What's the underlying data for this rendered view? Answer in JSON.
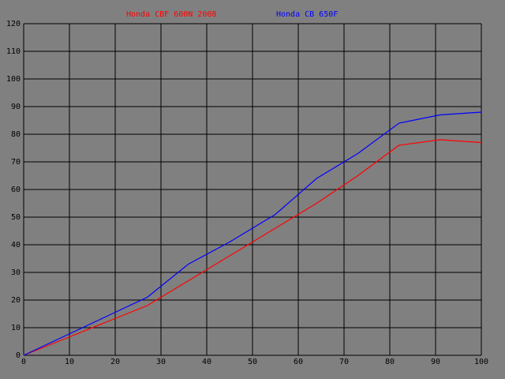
{
  "chart_data": {
    "type": "line",
    "x": [
      0,
      9,
      18,
      27,
      36,
      45,
      55,
      64,
      73,
      82,
      91,
      100
    ],
    "series": [
      {
        "name": "Honda CBF 600N 2008",
        "color": "#ff0000",
        "values": [
          0,
          6,
          12,
          18,
          27,
          36,
          46,
          55,
          65,
          76,
          78,
          77
        ]
      },
      {
        "name": "Honda CB 650F",
        "color": "#0000ff",
        "values": [
          0,
          7,
          14,
          21,
          33,
          41,
          51,
          64,
          73,
          84,
          87,
          88
        ]
      }
    ],
    "xlim": [
      0,
      100
    ],
    "xticks": [
      0,
      10,
      20,
      30,
      40,
      50,
      60,
      70,
      80,
      90,
      100
    ],
    "ylim": [
      0,
      120
    ],
    "yticks": [
      0,
      10,
      20,
      30,
      40,
      50,
      60,
      70,
      80,
      90,
      100,
      110,
      120
    ],
    "grid": true
  }
}
